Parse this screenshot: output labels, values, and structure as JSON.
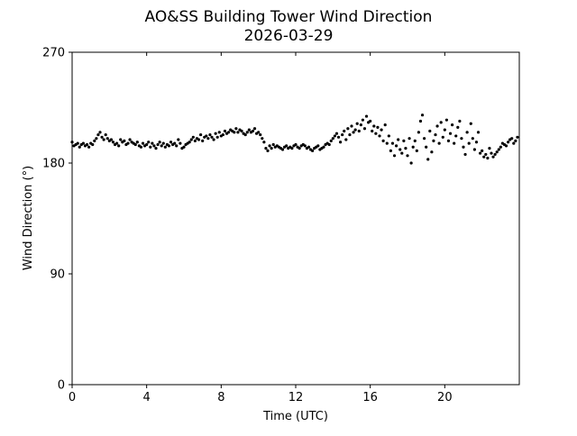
{
  "chart_data": {
    "type": "scatter",
    "title": "AO&SS Building Tower Wind Direction",
    "subtitle": "2026-03-29",
    "xlabel": "Time (UTC)",
    "ylabel": "Wind Direction (°)",
    "xlim": [
      0,
      24
    ],
    "ylim": [
      0,
      270
    ],
    "xticks": [
      0,
      4,
      8,
      12,
      16,
      20
    ],
    "xtick_labels": [
      "0",
      "4",
      "8",
      "12",
      "16",
      "20"
    ],
    "yticks": [
      0,
      90,
      180,
      270
    ],
    "ytick_labels": [
      "0",
      "90",
      "180",
      "270"
    ],
    "grid": false,
    "marker_color": "#000000",
    "series": [
      {
        "x": [
          0.0,
          0.1,
          0.2,
          0.3,
          0.4,
          0.5,
          0.6,
          0.7,
          0.8,
          0.9,
          1.0,
          1.1,
          1.2,
          1.3,
          1.4,
          1.5,
          1.6,
          1.7,
          1.8,
          1.9,
          2.0,
          2.1,
          2.2,
          2.3,
          2.4,
          2.5,
          2.6,
          2.7,
          2.8,
          2.9,
          3.0,
          3.1,
          3.2,
          3.3,
          3.4,
          3.5,
          3.6,
          3.7,
          3.8,
          3.9,
          4.0,
          4.1,
          4.2,
          4.3,
          4.4,
          4.5,
          4.6,
          4.7,
          4.8,
          4.9,
          5.0,
          5.1,
          5.2,
          5.3,
          5.4,
          5.5,
          5.6,
          5.7,
          5.8,
          5.9,
          6.0,
          6.1,
          6.2,
          6.3,
          6.4,
          6.5,
          6.6,
          6.7,
          6.8,
          6.9,
          7.0,
          7.1,
          7.2,
          7.3,
          7.4,
          7.5,
          7.6,
          7.7,
          7.8,
          7.9,
          8.0,
          8.1,
          8.2,
          8.3,
          8.4,
          8.5,
          8.6,
          8.7,
          8.8,
          8.9,
          9.0,
          9.1,
          9.2,
          9.3,
          9.4,
          9.5,
          9.6,
          9.7,
          9.8,
          9.9,
          10.0,
          10.1,
          10.2,
          10.3,
          10.4,
          10.5,
          10.6,
          10.7,
          10.8,
          10.9,
          11.0,
          11.1,
          11.2,
          11.3,
          11.4,
          11.5,
          11.6,
          11.7,
          11.8,
          11.9,
          12.0,
          12.1,
          12.2,
          12.3,
          12.4,
          12.5,
          12.6,
          12.7,
          12.8,
          12.9,
          13.0,
          13.1,
          13.2,
          13.3,
          13.4,
          13.5,
          13.6,
          13.7,
          13.8,
          13.9,
          14.0,
          14.1,
          14.2,
          14.3,
          14.4,
          14.5,
          14.6,
          14.7,
          14.8,
          14.9,
          15.0,
          15.1,
          15.2,
          15.3,
          15.4,
          15.5,
          15.6,
          15.7,
          15.8,
          15.9,
          16.0,
          16.1,
          16.2,
          16.3,
          16.4,
          16.5,
          16.6,
          16.7,
          16.8,
          16.9,
          17.0,
          17.1,
          17.2,
          17.3,
          17.4,
          17.5,
          17.6,
          17.7,
          17.8,
          17.9,
          18.0,
          18.1,
          18.2,
          18.3,
          18.4,
          18.5,
          18.6,
          18.7,
          18.8,
          18.9,
          19.0,
          19.1,
          19.2,
          19.3,
          19.4,
          19.5,
          19.6,
          19.7,
          19.8,
          19.9,
          20.0,
          20.1,
          20.2,
          20.3,
          20.4,
          20.5,
          20.6,
          20.7,
          20.8,
          20.9,
          21.0,
          21.1,
          21.2,
          21.3,
          21.4,
          21.5,
          21.6,
          21.7,
          21.8,
          21.9,
          22.0,
          22.1,
          22.2,
          22.3,
          22.4,
          22.5,
          22.6,
          22.7,
          22.8,
          22.9,
          23.0,
          23.1,
          23.2,
          23.3,
          23.4,
          23.5,
          23.6,
          23.7,
          23.8,
          23.9
        ],
        "y": [
          197,
          194,
          195,
          196,
          193,
          195,
          196,
          194,
          195,
          193,
          196,
          195,
          198,
          200,
          203,
          205,
          201,
          199,
          203,
          200,
          198,
          199,
          197,
          195,
          196,
          194,
          199,
          197,
          198,
          195,
          196,
          199,
          197,
          196,
          195,
          197,
          194,
          193,
          196,
          194,
          195,
          197,
          193,
          196,
          194,
          192,
          195,
          197,
          194,
          196,
          193,
          195,
          194,
          197,
          195,
          196,
          194,
          199,
          196,
          192,
          193,
          195,
          196,
          197,
          199,
          201,
          198,
          200,
          199,
          203,
          198,
          201,
          202,
          200,
          203,
          201,
          199,
          204,
          201,
          205,
          202,
          203,
          206,
          204,
          205,
          207,
          206,
          205,
          208,
          205,
          207,
          206,
          204,
          203,
          205,
          207,
          205,
          206,
          208,
          204,
          205,
          203,
          200,
          197,
          192,
          190,
          194,
          192,
          195,
          193,
          194,
          193,
          192,
          191,
          193,
          194,
          192,
          193,
          192,
          194,
          195,
          193,
          192,
          194,
          195,
          194,
          192,
          193,
          191,
          190,
          192,
          193,
          194,
          191,
          192,
          193,
          195,
          196,
          195,
          198,
          200,
          202,
          204,
          201,
          197,
          203,
          206,
          199,
          208,
          203,
          210,
          205,
          207,
          212,
          206,
          211,
          215,
          208,
          218,
          213,
          214,
          206,
          210,
          204,
          209,
          202,
          207,
          198,
          211,
          196,
          202,
          190,
          196,
          186,
          194,
          199,
          191,
          188,
          198,
          192,
          186,
          200,
          180,
          193,
          198,
          190,
          205,
          214,
          219,
          200,
          193,
          183,
          206,
          189,
          198,
          203,
          210,
          196,
          213,
          201,
          207,
          215,
          198,
          204,
          211,
          196,
          202,
          209,
          214,
          200,
          193,
          187,
          205,
          196,
          212,
          200,
          191,
          197,
          205,
          188,
          190,
          185,
          187,
          184,
          192,
          188,
          185,
          187,
          189,
          191,
          193,
          196,
          195,
          194,
          197,
          199,
          200,
          196,
          198,
          201
        ]
      }
    ]
  }
}
